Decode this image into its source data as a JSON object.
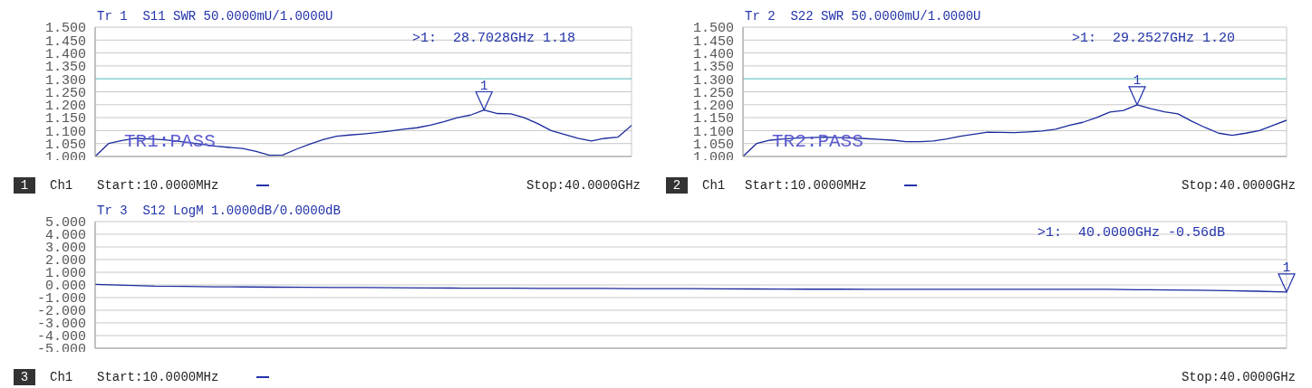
{
  "chart_data": [
    {
      "type": "line",
      "title": "Tr 1  S11 SWR 50.0000mU/1.0000U",
      "categories": [
        null,
        null,
        null,
        null,
        null,
        null,
        null,
        null,
        null,
        null,
        null,
        null,
        null,
        null,
        null,
        null,
        null,
        null,
        null,
        null,
        null,
        null,
        null,
        null,
        null,
        null,
        null,
        null,
        null,
        null,
        null,
        null,
        null,
        null,
        null,
        null,
        null,
        null,
        null,
        null,
        null
      ],
      "ylim": [
        1.0,
        1.5
      ],
      "yticks": [
        {
          "value": 1.0,
          "label": "1.000"
        },
        {
          "value": 1.05,
          "label": "1.050"
        },
        {
          "value": 1.1,
          "label": "1.100"
        },
        {
          "value": 1.15,
          "label": "1.150"
        },
        {
          "value": 1.2,
          "label": "1.200"
        },
        {
          "value": 1.25,
          "label": "1.250"
        },
        {
          "value": 1.3,
          "label": "1.300"
        },
        {
          "value": 1.35,
          "label": "1.350"
        },
        {
          "value": 1.4,
          "label": "1.400"
        },
        {
          "value": 1.45,
          "label": "1.450"
        },
        {
          "value": 1.5,
          "label": "1.500"
        }
      ],
      "tick_labels": "y",
      "grid": true,
      "marker": "none",
      "line_style": "solid",
      "series": [
        {
          "color": "#1a2a9c",
          "values": [
            1.0,
            1.05,
            1.062,
            1.07,
            1.068,
            1.065,
            1.06,
            1.054,
            1.047,
            1.04,
            1.035,
            1.031,
            1.02,
            1.005,
            1.006,
            1.028,
            1.048,
            1.065,
            1.078,
            1.083,
            1.087,
            1.092,
            1.098,
            1.105,
            1.111,
            1.121,
            1.134,
            1.15,
            1.16,
            1.18,
            1.166,
            1.165,
            1.15,
            1.127,
            1.1,
            1.085,
            1.07,
            1.06,
            1.07,
            1.075,
            1.12
          ]
        }
      ],
      "ref_lines": [
        {
          "axis": "y",
          "value": 1.3,
          "color": "#7fd4d4"
        }
      ],
      "annotations": [
        ">1:  28.7028GHz 1.18",
        "TR1:PASS",
        "1",
        "Ch1",
        "Start:10.0000MHz",
        "Stop:40.0000GHz",
        {
          "text": "1",
          "y": 1.18
        }
      ]
    },
    {
      "type": "line",
      "title": "Tr 2  S22 SWR 50.0000mU/1.0000U",
      "categories": [
        null,
        null,
        null,
        null,
        null,
        null,
        null,
        null,
        null,
        null,
        null,
        null,
        null,
        null,
        null,
        null,
        null,
        null,
        null,
        null,
        null,
        null,
        null,
        null,
        null,
        null,
        null,
        null,
        null,
        null,
        null,
        null,
        null,
        null,
        null,
        null,
        null,
        null,
        null,
        null,
        null
      ],
      "ylim": [
        1.0,
        1.5
      ],
      "yticks": [
        {
          "value": 1.0,
          "label": "1.000"
        },
        {
          "value": 1.05,
          "label": "1.050"
        },
        {
          "value": 1.1,
          "label": "1.100"
        },
        {
          "value": 1.15,
          "label": "1.150"
        },
        {
          "value": 1.2,
          "label": "1.200"
        },
        {
          "value": 1.25,
          "label": "1.250"
        },
        {
          "value": 1.3,
          "label": "1.300"
        },
        {
          "value": 1.35,
          "label": "1.350"
        },
        {
          "value": 1.4,
          "label": "1.400"
        },
        {
          "value": 1.45,
          "label": "1.450"
        },
        {
          "value": 1.5,
          "label": "1.500"
        }
      ],
      "tick_labels": "y",
      "grid": true,
      "marker": "none",
      "line_style": "solid",
      "series": [
        {
          "color": "#1a2a9c",
          "values": [
            1.0,
            1.05,
            1.063,
            1.068,
            1.071,
            1.073,
            1.075,
            1.073,
            1.071,
            1.069,
            1.066,
            1.063,
            1.057,
            1.057,
            1.06,
            1.068,
            1.078,
            1.086,
            1.094,
            1.093,
            1.092,
            1.095,
            1.098,
            1.105,
            1.12,
            1.132,
            1.15,
            1.172,
            1.178,
            1.2,
            1.185,
            1.173,
            1.165,
            1.137,
            1.112,
            1.09,
            1.082,
            1.09,
            1.1,
            1.12,
            1.14
          ]
        }
      ],
      "ref_lines": [
        {
          "axis": "y",
          "value": 1.3,
          "color": "#7fd4d4"
        }
      ],
      "annotations": [
        ">1:  29.2527GHz 1.20",
        "TR2:PASS",
        "2",
        "Ch1",
        "Start:10.0000MHz",
        "Stop:40.0000GHz",
        {
          "text": "1",
          "y": 1.2
        }
      ]
    },
    {
      "type": "line",
      "title": "Tr 3  S12 LogM 1.0000dB/0.0000dB",
      "categories": [
        null,
        null,
        null,
        null,
        null,
        null,
        null,
        null,
        null,
        null,
        null,
        null,
        null,
        null,
        null,
        null,
        null,
        null,
        null,
        null,
        null,
        null,
        null,
        null,
        null,
        null,
        null,
        null,
        null,
        null,
        null,
        null,
        null,
        null,
        null,
        null,
        null,
        null,
        null,
        null,
        null
      ],
      "ylim": [
        -5,
        5
      ],
      "yticks": [
        {
          "value": -5,
          "label": "-5.000"
        },
        {
          "value": -4,
          "label": "-4.000"
        },
        {
          "value": -3,
          "label": "-3.000"
        },
        {
          "value": -2,
          "label": "-2.000"
        },
        {
          "value": -1,
          "label": "-1.000"
        },
        {
          "value": 0,
          "label": "0.000"
        },
        {
          "value": 1,
          "label": "1.000"
        },
        {
          "value": 2,
          "label": "2.000"
        },
        {
          "value": 3,
          "label": "3.000"
        },
        {
          "value": 4,
          "label": "4.000"
        },
        {
          "value": 5,
          "label": "5.000"
        }
      ],
      "tick_labels": "y",
      "grid": true,
      "marker": "none",
      "line_style": "solid",
      "series": [
        {
          "color": "#1a2a9c",
          "values": [
            0.05,
            -0.02,
            -0.1,
            -0.12,
            -0.15,
            -0.16,
            -0.18,
            -0.19,
            -0.2,
            -0.21,
            -0.22,
            -0.24,
            -0.25,
            -0.26,
            -0.26,
            -0.27,
            -0.28,
            -0.28,
            -0.29,
            -0.3,
            -0.3,
            -0.31,
            -0.32,
            -0.33,
            -0.34,
            -0.34,
            -0.35,
            -0.35,
            -0.35,
            -0.35,
            -0.35,
            -0.35,
            -0.35,
            -0.35,
            -0.35,
            -0.38,
            -0.4,
            -0.42,
            -0.45,
            -0.5,
            -0.56
          ]
        }
      ],
      "annotations": [
        ">1:  40.0000GHz -0.56dB",
        "3",
        "Ch1",
        "Start:10.0000MHz",
        "Stop:40.0000GHz",
        {
          "text": "1",
          "y": -0.56
        }
      ]
    }
  ]
}
